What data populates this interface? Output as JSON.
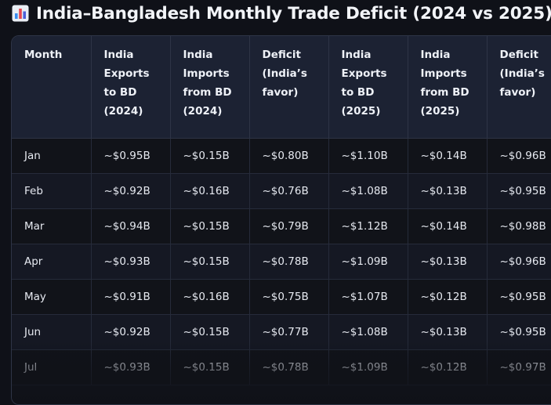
{
  "title": "India–Bangladesh Monthly Trade Deficit (2024 vs 2025)",
  "title_icon": "bar-chart-icon",
  "table": {
    "headers": [
      [
        "Month"
      ],
      [
        "India",
        "Exports",
        "to BD",
        "(2024)"
      ],
      [
        "India",
        "Imports",
        "from BD",
        "(2024)"
      ],
      [
        "Deficit",
        "(India’s",
        "favor)"
      ],
      [
        "India",
        "Exports",
        "to BD",
        "(2025)"
      ],
      [
        "India",
        "Imports",
        "from BD",
        "(2025)"
      ],
      [
        "Deficit",
        "(India’s",
        "favor)"
      ]
    ],
    "rows": [
      [
        "Jan",
        "~$0.95B",
        "~$0.15B",
        "~$0.80B",
        "~$1.10B",
        "~$0.14B",
        "~$0.96B"
      ],
      [
        "Feb",
        "~$0.92B",
        "~$0.16B",
        "~$0.76B",
        "~$1.08B",
        "~$0.13B",
        "~$0.95B"
      ],
      [
        "Mar",
        "~$0.94B",
        "~$0.15B",
        "~$0.79B",
        "~$1.12B",
        "~$0.14B",
        "~$0.98B"
      ],
      [
        "Apr",
        "~$0.93B",
        "~$0.15B",
        "~$0.78B",
        "~$1.09B",
        "~$0.13B",
        "~$0.96B"
      ],
      [
        "May",
        "~$0.91B",
        "~$0.16B",
        "~$0.75B",
        "~$1.07B",
        "~$0.12B",
        "~$0.95B"
      ],
      [
        "Jun",
        "~$0.92B",
        "~$0.15B",
        "~$0.77B",
        "~$1.08B",
        "~$0.13B",
        "~$0.95B"
      ],
      [
        "Jul",
        "~$0.93B",
        "~$0.15B",
        "~$0.78B",
        "~$1.09B",
        "~$0.12B",
        "~$0.97B"
      ]
    ]
  }
}
